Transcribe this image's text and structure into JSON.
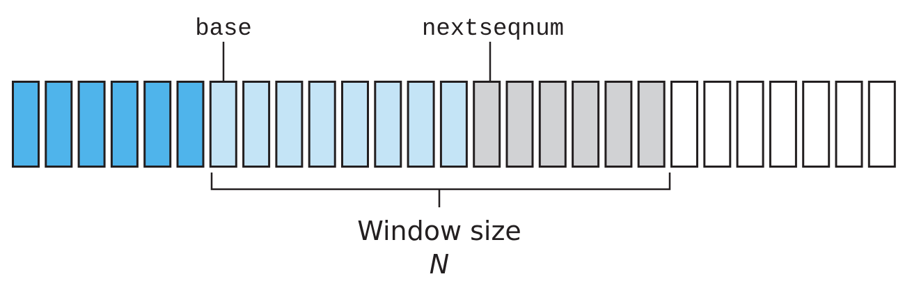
{
  "labels": {
    "base": "base",
    "nextseqnum": "nextseqnum",
    "window_size": "Window size",
    "window_symbol": "N"
  },
  "sequence": {
    "slot_count": 27,
    "groups": [
      {
        "kind": "acked",
        "count": 6,
        "color": "#4fb4eb"
      },
      {
        "kind": "sent-not-acked",
        "count": 8,
        "color": "#c4e4f6"
      },
      {
        "kind": "usable-not-sent",
        "count": 6,
        "color": "#d1d2d4"
      },
      {
        "kind": "not-usable",
        "count": 7,
        "color": "#ffffff"
      }
    ],
    "outline_color": "#231f20"
  }
}
